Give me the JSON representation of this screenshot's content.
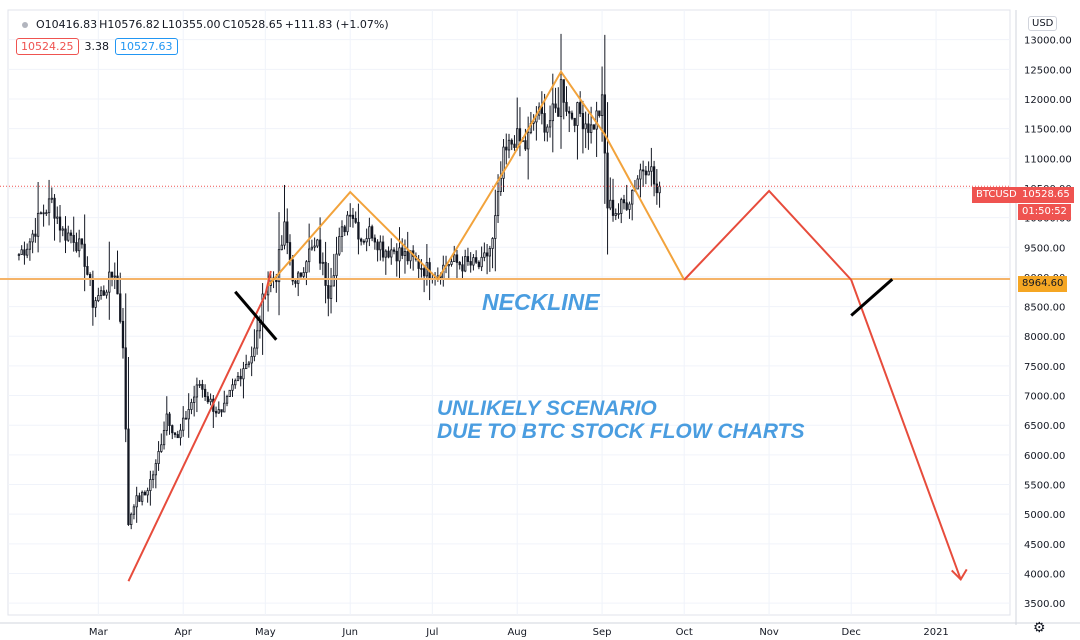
{
  "ohlc": {
    "open": "O10416.83",
    "high": "H10576.82",
    "low": "L10355.00",
    "close": "C10528.65",
    "change": "+111.83 (+1.07%)"
  },
  "quote": {
    "sell": "10524.25",
    "spread": "3.38",
    "buy": "10527.63"
  },
  "currency": "USD",
  "symbol": "BTCUSD",
  "last_price": "10528.65",
  "countdown": "01:50:52",
  "neckline_price": "8964.60",
  "annotations": {
    "neckline": "NECKLINE",
    "scenario_line1": "UNLIKELY SCENARIO",
    "scenario_line2": "DUE TO BTC STOCK FLOW CHARTS"
  },
  "colors": {
    "price_line": "#ef5350",
    "neckline": "#f5b469",
    "pattern": "#f2a33c",
    "projection": "#e74c3c",
    "annotation_text": "#4a9de0",
    "tag_neckline": "#f5a623"
  },
  "settings_icon": "gear-icon",
  "chart_data": {
    "type": "candlestick",
    "y_axis_ticks": [
      13000,
      12500,
      12000,
      11500,
      11000,
      10500,
      10000,
      9500,
      9000,
      8500,
      8000,
      7500,
      7000,
      6500,
      6000,
      5500,
      5000,
      4500,
      4000,
      3500
    ],
    "y_axis_labels": [
      "13000.00",
      "12500.00",
      "12000.00",
      "11500.00",
      "11000.00",
      "10500.00",
      "10000.00",
      "9500.00",
      "9000.00",
      "8500.00",
      "8000.00",
      "7500.00",
      "7000.00",
      "6500.00",
      "6000.00",
      "5500.00",
      "5000.00",
      "4500.00",
      "4000.00",
      "3500.00"
    ],
    "ylim": [
      3300,
      13500
    ],
    "x_axis_labels": [
      "Mar",
      "Apr",
      "May",
      "Jun",
      "Jul",
      "Aug",
      "Sep",
      "Oct",
      "Nov",
      "Dec",
      "2021"
    ],
    "x_axis_dates": [
      "2020-03-01",
      "2020-04-01",
      "2020-05-01",
      "2020-06-01",
      "2020-07-01",
      "2020-08-01",
      "2020-09-01",
      "2020-10-01",
      "2020-11-01",
      "2020-12-01",
      "2021-01-01"
    ],
    "xlim": [
      "2020-01-28",
      "2021-01-28"
    ],
    "grid": true,
    "neckline": 8964.6,
    "last_price": 10528.65,
    "closes": [
      [
        "2020-02-01",
        9380
      ],
      [
        "2020-02-05",
        9610
      ],
      [
        "2020-02-09",
        10050
      ],
      [
        "2020-02-13",
        10270
      ],
      [
        "2020-02-17",
        9750
      ],
      [
        "2020-02-21",
        9690
      ],
      [
        "2020-02-25",
        9300
      ],
      [
        "2020-02-28",
        8580
      ],
      [
        "2020-03-03",
        8760
      ],
      [
        "2020-03-07",
        9100
      ],
      [
        "2020-03-10",
        7900
      ],
      [
        "2020-03-12",
        4850
      ],
      [
        "2020-03-14",
        5200
      ],
      [
        "2020-03-18",
        5330
      ],
      [
        "2020-03-22",
        5800
      ],
      [
        "2020-03-26",
        6700
      ],
      [
        "2020-03-30",
        6250
      ],
      [
        "2020-04-03",
        6780
      ],
      [
        "2020-04-07",
        7200
      ],
      [
        "2020-04-11",
        6880
      ],
      [
        "2020-04-15",
        6640
      ],
      [
        "2020-04-19",
        7120
      ],
      [
        "2020-04-23",
        7500
      ],
      [
        "2020-04-27",
        7750
      ],
      [
        "2020-05-01",
        8850
      ],
      [
        "2020-05-05",
        9050
      ],
      [
        "2020-05-08",
        9800
      ],
      [
        "2020-05-12",
        8800
      ],
      [
        "2020-05-16",
        9370
      ],
      [
        "2020-05-20",
        9500
      ],
      [
        "2020-05-24",
        8780
      ],
      [
        "2020-05-28",
        9570
      ],
      [
        "2020-06-01",
        10200
      ],
      [
        "2020-06-05",
        9650
      ],
      [
        "2020-06-09",
        9780
      ],
      [
        "2020-06-13",
        9470
      ],
      [
        "2020-06-17",
        9460
      ],
      [
        "2020-06-21",
        9350
      ],
      [
        "2020-06-25",
        9250
      ],
      [
        "2020-06-29",
        9120
      ],
      [
        "2020-07-03",
        9080
      ],
      [
        "2020-07-07",
        9250
      ],
      [
        "2020-07-11",
        9230
      ],
      [
        "2020-07-15",
        9200
      ],
      [
        "2020-07-19",
        9180
      ],
      [
        "2020-07-23",
        9580
      ],
      [
        "2020-07-27",
        11000
      ],
      [
        "2020-07-31",
        11350
      ],
      [
        "2020-08-04",
        11200
      ],
      [
        "2020-08-08",
        11750
      ],
      [
        "2020-08-12",
        11580
      ],
      [
        "2020-08-16",
        11850
      ],
      [
        "2020-08-17",
        12250
      ],
      [
        "2020-08-20",
        11750
      ],
      [
        "2020-08-24",
        11750
      ],
      [
        "2020-08-28",
        11500
      ],
      [
        "2020-09-01",
        11900
      ],
      [
        "2020-09-03",
        10200
      ],
      [
        "2020-09-07",
        10100
      ],
      [
        "2020-09-11",
        10350
      ],
      [
        "2020-09-15",
        10800
      ],
      [
        "2020-09-18",
        10950
      ],
      [
        "2020-09-21",
        10400
      ],
      [
        "2020-09-22",
        10528.65
      ]
    ],
    "pattern_line": [
      [
        "2020-05-02",
        8850
      ],
      [
        "2020-06-01",
        10430
      ],
      [
        "2020-07-03",
        8960
      ],
      [
        "2020-07-30",
        11000
      ],
      [
        "2020-08-17",
        12460
      ],
      [
        "2020-09-02",
        11400
      ],
      [
        "2020-10-01",
        8950
      ]
    ],
    "projection_line": [
      [
        "2020-03-12",
        3870
      ],
      [
        "2020-05-01",
        8700
      ],
      [
        "2020-05-03",
        9100
      ]
    ],
    "projection_path": [
      [
        "2020-10-01",
        8950
      ],
      [
        "2020-11-01",
        10450
      ],
      [
        "2020-12-01",
        8950
      ],
      [
        "2021-01-10",
        3900
      ]
    ],
    "break_marks": [
      {
        "from": [
          "2020-04-20",
          8750
        ],
        "to": [
          "2020-05-05",
          7940
        ]
      },
      {
        "from": [
          "2020-12-01",
          8350
        ],
        "to": [
          "2020-12-16",
          8960
        ]
      }
    ]
  }
}
